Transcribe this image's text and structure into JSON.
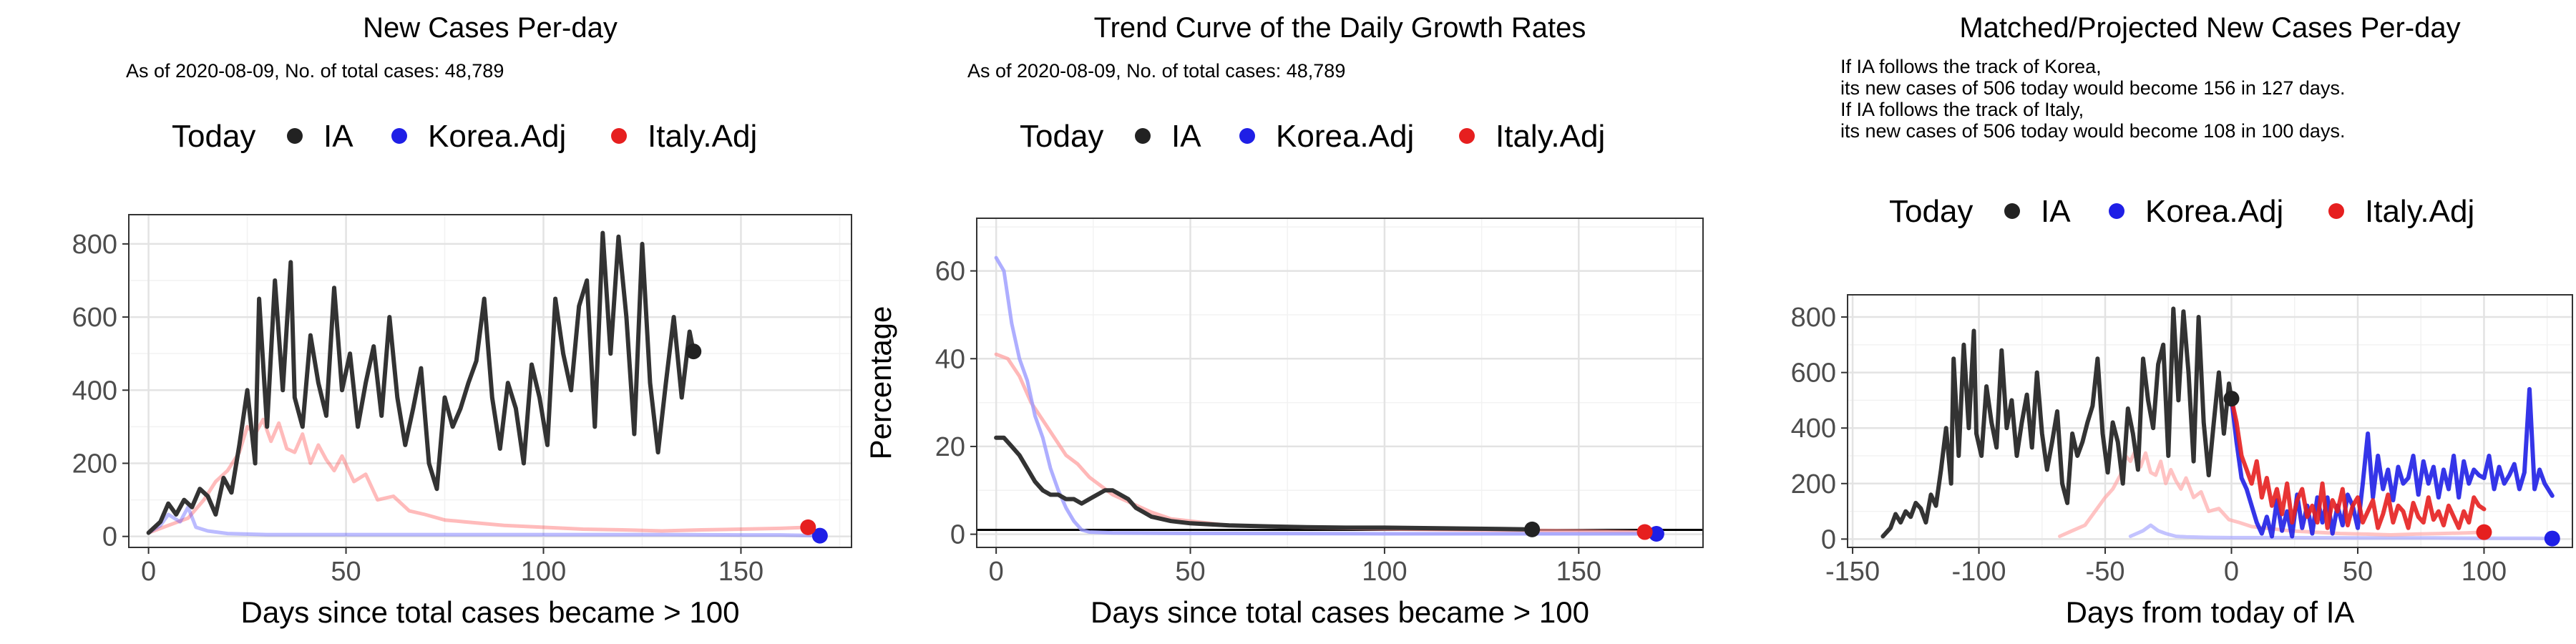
{
  "chart_data": [
    {
      "type": "line",
      "title": "New Cases Per-day",
      "subtitle": "As of 2020-08-09, No. of total cases: 48,789",
      "xlabel": "Days since total cases became > 100",
      "ylabel": "",
      "xlim": [
        -5,
        178
      ],
      "ylim": [
        -30,
        880
      ],
      "xticks": [
        0,
        50,
        100,
        150
      ],
      "yticks": [
        0,
        200,
        400,
        600,
        800
      ],
      "legend": {
        "position": "top",
        "title": "Today",
        "items": [
          "IA",
          "Korea.Adj",
          "Italy.Adj"
        ]
      },
      "grid": true,
      "series": [
        {
          "name": "IA",
          "color": "#333333",
          "x": [
            0,
            3,
            5,
            7,
            9,
            11,
            13,
            15,
            17,
            19,
            21,
            23,
            25,
            27,
            28,
            30,
            32,
            34,
            36,
            37,
            39,
            41,
            43,
            45,
            47,
            49,
            51,
            53,
            55,
            57,
            59,
            61,
            63,
            65,
            67,
            69,
            71,
            73,
            75,
            77,
            79,
            81,
            83,
            85,
            87,
            89,
            91,
            93,
            95,
            97,
            99,
            101,
            103,
            105,
            107,
            109,
            111,
            113,
            115,
            117,
            119,
            121,
            123,
            125,
            127,
            129,
            131,
            133,
            135,
            137,
            138
          ],
          "y": [
            10,
            40,
            90,
            60,
            100,
            80,
            130,
            110,
            60,
            160,
            120,
            250,
            400,
            200,
            650,
            300,
            700,
            400,
            750,
            380,
            300,
            550,
            420,
            330,
            680,
            400,
            500,
            300,
            420,
            520,
            330,
            600,
            380,
            250,
            350,
            460,
            200,
            130,
            380,
            300,
            350,
            420,
            480,
            650,
            380,
            240,
            420,
            350,
            200,
            470,
            380,
            250,
            650,
            500,
            400,
            630,
            700,
            300,
            830,
            500,
            820,
            600,
            280,
            800,
            420,
            230,
            420,
            600,
            380,
            560,
            506
          ]
        },
        {
          "name": "Korea.Adj",
          "color": "#3b3bff",
          "x": [
            0,
            3,
            5,
            8,
            10,
            12,
            15,
            20,
            30,
            50,
            70,
            100,
            130,
            150,
            160,
            165,
            170
          ],
          "y": [
            10,
            30,
            60,
            40,
            80,
            25,
            15,
            8,
            5,
            5,
            5,
            5,
            5,
            4,
            4,
            3,
            2
          ]
        },
        {
          "name": "Italy.Adj",
          "color": "#ff3b3b",
          "x": [
            0,
            5,
            10,
            14,
            17,
            20,
            23,
            25,
            27,
            29,
            31,
            33,
            35,
            37,
            39,
            41,
            43,
            45,
            47,
            49,
            52,
            55,
            58,
            62,
            66,
            70,
            75,
            80,
            90,
            100,
            110,
            120,
            130,
            140,
            150,
            160,
            167
          ],
          "y": [
            10,
            30,
            50,
            100,
            150,
            180,
            230,
            300,
            280,
            320,
            260,
            310,
            240,
            230,
            280,
            200,
            250,
            210,
            180,
            220,
            150,
            170,
            100,
            110,
            70,
            60,
            45,
            40,
            30,
            25,
            20,
            18,
            15,
            18,
            20,
            22,
            25
          ]
        }
      ],
      "today_points": [
        {
          "series": "IA",
          "x": 138,
          "y": 506
        },
        {
          "series": "Korea.Adj",
          "x": 170,
          "y": 2
        },
        {
          "series": "Italy.Adj",
          "x": 167,
          "y": 25
        }
      ]
    },
    {
      "type": "line",
      "title": "Trend Curve of the Daily Growth Rates",
      "subtitle": "As of 2020-08-09, No. of total cases: 48,789",
      "xlabel": "Days since total cases became > 100",
      "ylabel": "Percentage",
      "xlim": [
        -5,
        182
      ],
      "ylim": [
        -3,
        72
      ],
      "xticks": [
        0,
        50,
        100,
        150
      ],
      "yticks": [
        0,
        20,
        40,
        60
      ],
      "legend": {
        "position": "top",
        "title": "Today",
        "items": [
          "IA",
          "Korea.Adj",
          "Italy.Adj"
        ]
      },
      "grid": true,
      "hline": 1,
      "series": [
        {
          "name": "IA",
          "color": "#333333",
          "x": [
            0,
            2,
            4,
            6,
            8,
            10,
            12,
            14,
            16,
            18,
            20,
            22,
            24,
            26,
            28,
            30,
            32,
            34,
            36,
            38,
            40,
            45,
            50,
            60,
            70,
            80,
            90,
            100,
            110,
            120,
            130,
            138
          ],
          "y": [
            22,
            22,
            20,
            18,
            15,
            12,
            10,
            9,
            9,
            8,
            8,
            7,
            8,
            9,
            10,
            10,
            9,
            8,
            6,
            5,
            4,
            3,
            2.5,
            2,
            1.8,
            1.6,
            1.5,
            1.5,
            1.4,
            1.3,
            1.2,
            1.1
          ]
        },
        {
          "name": "Korea.Adj",
          "color": "#9a9aff",
          "x": [
            0,
            2,
            4,
            6,
            8,
            10,
            12,
            14,
            16,
            18,
            20,
            22,
            24,
            30,
            50,
            100,
            150,
            170
          ],
          "y": [
            63,
            60,
            48,
            40,
            35,
            27,
            22,
            15,
            10,
            6,
            3,
            1,
            0.5,
            0.3,
            0.2,
            0.1,
            0.1,
            0.1
          ]
        },
        {
          "name": "Italy.Adj",
          "color": "#ff9a9a",
          "x": [
            0,
            3,
            6,
            9,
            12,
            15,
            18,
            21,
            24,
            27,
            30,
            35,
            40,
            45,
            50,
            60,
            70,
            80,
            100,
            120,
            150,
            167
          ],
          "y": [
            41,
            40,
            36,
            30,
            26,
            22,
            18,
            16,
            13,
            11,
            9,
            7,
            5,
            3.5,
            3,
            2,
            1.8,
            1.5,
            1.2,
            1,
            0.8,
            0.5
          ]
        }
      ],
      "today_points": [
        {
          "series": "IA",
          "x": 138,
          "y": 1.1
        },
        {
          "series": "Korea.Adj",
          "x": 170,
          "y": 0.1
        },
        {
          "series": "Italy.Adj",
          "x": 167,
          "y": 0.5
        }
      ]
    },
    {
      "type": "line",
      "title": "Matched/Projected New Cases Per-day",
      "subtitle_lines": [
        "If IA follows the track of Korea,",
        "its new cases of 506 today would become 156 in 127 days.",
        "If IA follows the track of Italy,",
        "its new cases of 506 today would become 108 in 100 days."
      ],
      "xlabel": "Days from today of IA",
      "ylabel": "",
      "xlim": [
        -152,
        135
      ],
      "ylim": [
        -30,
        880
      ],
      "xticks": [
        -150,
        -100,
        -50,
        0,
        50,
        100
      ],
      "yticks": [
        0,
        200,
        400,
        600,
        800
      ],
      "legend": {
        "position": "top",
        "title": "Today",
        "items": [
          "IA",
          "Korea.Adj",
          "Italy.Adj"
        ]
      },
      "grid": true,
      "series": [
        {
          "name": "IA",
          "color": "#333333",
          "x": [
            -138,
            -135,
            -133,
            -131,
            -129,
            -127,
            -125,
            -123,
            -121,
            -119,
            -117,
            -115,
            -113,
            -111,
            -110,
            -108,
            -106,
            -104,
            -102,
            -101,
            -99,
            -97,
            -95,
            -93,
            -91,
            -89,
            -87,
            -85,
            -83,
            -81,
            -79,
            -77,
            -75,
            -73,
            -71,
            -69,
            -67,
            -65,
            -63,
            -61,
            -59,
            -57,
            -55,
            -53,
            -51,
            -49,
            -47,
            -45,
            -43,
            -41,
            -39,
            -37,
            -35,
            -33,
            -31,
            -29,
            -27,
            -25,
            -23,
            -21,
            -19,
            -17,
            -15,
            -13,
            -11,
            -9,
            -7,
            -5,
            -3,
            -1,
            0
          ],
          "y": [
            10,
            40,
            90,
            60,
            100,
            80,
            130,
            110,
            60,
            160,
            120,
            250,
            400,
            200,
            650,
            300,
            700,
            400,
            750,
            380,
            300,
            550,
            420,
            330,
            680,
            400,
            500,
            300,
            420,
            520,
            330,
            600,
            380,
            250,
            350,
            460,
            200,
            130,
            380,
            300,
            350,
            420,
            480,
            650,
            380,
            240,
            420,
            350,
            200,
            470,
            380,
            250,
            650,
            500,
            400,
            630,
            700,
            300,
            830,
            500,
            820,
            600,
            280,
            800,
            420,
            230,
            420,
            600,
            380,
            560,
            506
          ]
        },
        {
          "name": "Korea.Adj (projected)",
          "color": "#1f1fe6",
          "x": [
            0,
            2,
            4,
            6,
            8,
            10,
            12,
            14,
            16,
            18,
            20,
            22,
            24,
            26,
            28,
            30,
            32,
            34,
            36,
            38,
            40,
            42,
            44,
            46,
            48,
            50,
            52,
            54,
            56,
            58,
            60,
            62,
            64,
            66,
            68,
            70,
            72,
            74,
            76,
            78,
            80,
            82,
            84,
            86,
            88,
            90,
            92,
            94,
            96,
            98,
            100,
            102,
            104,
            106,
            108,
            110,
            112,
            114,
            116,
            118,
            120,
            122,
            124,
            127
          ],
          "y": [
            506,
            350,
            220,
            180,
            120,
            60,
            20,
            80,
            10,
            140,
            30,
            100,
            10,
            160,
            40,
            120,
            20,
            150,
            60,
            150,
            20,
            120,
            50,
            160,
            120,
            40,
            200,
            380,
            150,
            300,
            180,
            250,
            140,
            260,
            200,
            220,
            300,
            160,
            280,
            200,
            260,
            150,
            250,
            180,
            300,
            150,
            280,
            200,
            250,
            230,
            220,
            300,
            180,
            260,
            200,
            230,
            270,
            180,
            240,
            540,
            180,
            250,
            200,
            156
          ]
        },
        {
          "name": "Italy.Adj (projected)",
          "color": "#e61f1f",
          "x": [
            0,
            2,
            4,
            6,
            8,
            10,
            12,
            14,
            16,
            18,
            20,
            22,
            24,
            26,
            28,
            30,
            32,
            34,
            36,
            38,
            40,
            42,
            44,
            46,
            48,
            50,
            52,
            54,
            56,
            58,
            60,
            62,
            64,
            66,
            68,
            70,
            72,
            74,
            76,
            78,
            80,
            82,
            84,
            86,
            88,
            90,
            92,
            94,
            96,
            98,
            100
          ],
          "y": [
            506,
            420,
            300,
            250,
            200,
            280,
            150,
            220,
            120,
            180,
            90,
            200,
            60,
            140,
            180,
            80,
            120,
            60,
            200,
            40,
            140,
            100,
            180,
            50,
            120,
            150,
            60,
            100,
            140,
            40,
            90,
            160,
            60,
            120,
            100,
            40,
            130,
            80,
            60,
            150,
            70,
            100,
            50,
            120,
            80,
            40,
            100,
            60,
            150,
            120,
            108
          ]
        },
        {
          "name": "Korea.Adj",
          "color": "#aaaaff",
          "x": [
            -40,
            -35,
            -32,
            -29,
            -26,
            -22,
            -18,
            -10,
            0,
            20,
            50,
            80,
            100,
            120,
            127
          ],
          "y": [
            10,
            30,
            50,
            30,
            20,
            10,
            8,
            6,
            5,
            5,
            4,
            4,
            3,
            3,
            2
          ]
        },
        {
          "name": "Italy.Adj",
          "color": "#ffaaaa",
          "x": [
            -68,
            -63,
            -58,
            -54,
            -50,
            -47,
            -44,
            -42,
            -40,
            -38,
            -36,
            -34,
            -32,
            -30,
            -28,
            -26,
            -24,
            -22,
            -20,
            -18,
            -15,
            -12,
            -9,
            -5,
            -1,
            3,
            8,
            13,
            23,
            33,
            43,
            53,
            63,
            73,
            83,
            93,
            100
          ],
          "y": [
            10,
            30,
            50,
            100,
            150,
            180,
            230,
            300,
            280,
            320,
            260,
            310,
            240,
            230,
            280,
            200,
            250,
            210,
            180,
            220,
            150,
            170,
            100,
            110,
            70,
            60,
            45,
            40,
            30,
            25,
            20,
            18,
            15,
            18,
            20,
            22,
            25
          ]
        }
      ],
      "today_points": [
        {
          "series": "IA",
          "x": 0,
          "y": 506
        },
        {
          "series": "Korea.Adj",
          "x": 127,
          "y": 2
        },
        {
          "series": "Italy.Adj",
          "x": 100,
          "y": 25
        }
      ]
    }
  ],
  "colors": {
    "IA": "#000000",
    "Korea.Adj": "#1f1fe6",
    "Italy.Adj": "#e61f1f",
    "grid": "#ebebeb",
    "axis_text": "#4d4d4d"
  }
}
